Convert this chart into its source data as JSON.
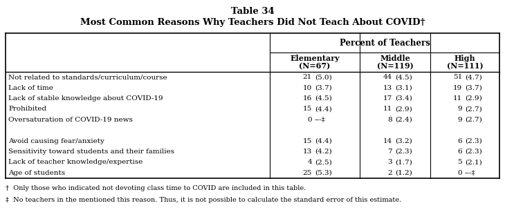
{
  "title_line1": "Table 34",
  "title_line2": "Most Common Reasons Why Teachers Did Not Teach About COVID†",
  "header_main": "Percent of Teachers",
  "col_headers_line1": [
    "Elementary",
    "Middle",
    "High"
  ],
  "col_headers_line2": [
    "(N=67)",
    "(N=119)",
    "(N=111)"
  ],
  "rows_group1": [
    [
      "Not related to standards/curriculum/course",
      "21",
      "(5.0)",
      "44",
      "(4.5)",
      "51",
      "(4.7)"
    ],
    [
      "Lack of time",
      "10",
      "(3.7)",
      "13",
      "(3.1)",
      "19",
      "(3.7)"
    ],
    [
      "Lack of stable knowledge about COVID-19",
      "16",
      "(4.5)",
      "17",
      "(3.4)",
      "11",
      "(2.9)"
    ],
    [
      "Prohibited",
      "15",
      "(4.4)",
      "11",
      "(2.9)",
      "9",
      "(2.7)"
    ],
    [
      "Oversaturation of COVID-19 news",
      "0",
      "---‡",
      "8",
      "(2.4)",
      "9",
      "(2.7)"
    ]
  ],
  "rows_group2": [
    [
      "Avoid causing fear/anxiety",
      "15",
      "(4.4)",
      "14",
      "(3.2)",
      "6",
      "(2.3)"
    ],
    [
      "Sensitivity toward students and their families",
      "13",
      "(4.2)",
      "7",
      "(2.3)",
      "6",
      "(2.3)"
    ],
    [
      "Lack of teacher knowledge/expertise",
      "4",
      "(2.5)",
      "3",
      "(1.7)",
      "5",
      "(2.1)"
    ],
    [
      "Age of students",
      "25",
      "(5.3)",
      "2",
      "(1.2)",
      "0",
      "---‡"
    ]
  ],
  "footnote1": "†  Only those who indicated not devoting class time to COVID are included in this table.",
  "footnote2": "‡  No teachers in the mentioned this reason. Thus, it is not possible to calculate the standard error of this estimate.",
  "bg_color": "#ffffff",
  "text_color": "#000000"
}
